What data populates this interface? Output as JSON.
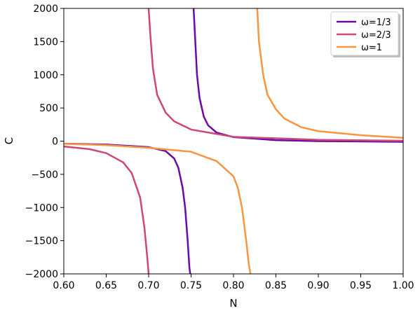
{
  "chart_data": {
    "type": "line",
    "title": "",
    "xlabel": "N",
    "ylabel": "C",
    "xlim": [
      0.6,
      1.0
    ],
    "ylim": [
      -2000,
      2000
    ],
    "xticks": [
      0.6,
      0.65,
      0.7,
      0.75,
      0.8,
      0.85,
      0.9,
      0.95,
      1.0
    ],
    "xtick_labels": [
      "0.60",
      "0.65",
      "0.70",
      "0.75",
      "0.80",
      "0.85",
      "0.90",
      "0.95",
      "1.00"
    ],
    "yticks": [
      -2000,
      -1500,
      -1000,
      -500,
      0,
      500,
      1000,
      1500,
      2000
    ],
    "ytick_labels": [
      "−2000",
      "−1500",
      "−1000",
      "−500",
      "0",
      "500",
      "1000",
      "1500",
      "2000"
    ],
    "grid": false,
    "legend_position": "top-right",
    "series": [
      {
        "name": "ω=1/3",
        "color": "#6a0ba8",
        "branches": [
          {
            "x": [
              0.6,
              0.65,
              0.7,
              0.72,
              0.73,
              0.735,
              0.74,
              0.743,
              0.746,
              0.748,
              0.749
            ],
            "y": [
              -38,
              -52,
              -90,
              -150,
              -260,
              -400,
              -700,
              -1000,
              -1500,
              -1900,
              -2000
            ]
          },
          {
            "x": [
              0.753,
              0.755,
              0.757,
              0.76,
              0.765,
              0.77,
              0.78,
              0.8,
              0.85,
              0.9,
              1.0
            ],
            "y": [
              2000,
              1500,
              1000,
              650,
              370,
              240,
              130,
              60,
              15,
              0,
              -10
            ]
          }
        ]
      },
      {
        "name": "ω=2/3",
        "color": "#cc4778",
        "branches": [
          {
            "x": [
              0.6,
              0.63,
              0.65,
              0.67,
              0.68,
              0.69,
              0.695,
              0.698,
              0.7
            ],
            "y": [
              -80,
              -120,
              -180,
              -320,
              -480,
              -850,
              -1300,
              -1700,
              -2000
            ]
          },
          {
            "x": [
              0.7,
              0.702,
              0.705,
              0.71,
              0.72,
              0.73,
              0.75,
              0.8,
              0.9,
              1.0
            ],
            "y": [
              2000,
              1600,
              1100,
              700,
              430,
              300,
              175,
              65,
              20,
              5
            ]
          }
        ]
      },
      {
        "name": "ω=1",
        "color": "#f89540",
        "branches": [
          {
            "x": [
              0.6,
              0.65,
              0.7,
              0.75,
              0.78,
              0.8,
              0.805,
              0.81,
              0.815,
              0.818,
              0.82
            ],
            "y": [
              -40,
              -60,
              -100,
              -160,
              -300,
              -530,
              -700,
              -1000,
              -1500,
              -1850,
              -2000
            ]
          },
          {
            "x": [
              0.828,
              0.83,
              0.835,
              0.84,
              0.85,
              0.86,
              0.88,
              0.9,
              0.95,
              1.0
            ],
            "y": [
              2000,
              1500,
              1000,
              700,
              480,
              340,
              210,
              150,
              90,
              50
            ]
          }
        ]
      }
    ]
  }
}
